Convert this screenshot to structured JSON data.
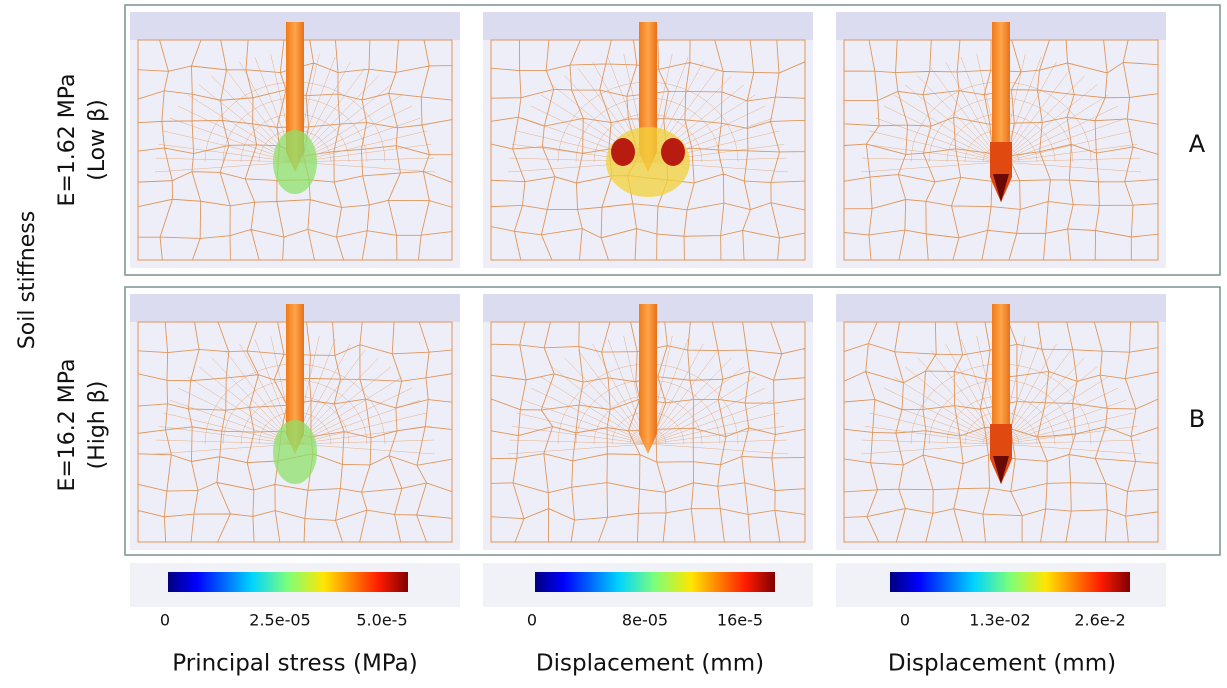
{
  "side_label": "Soil stiffness",
  "rows": [
    {
      "line1": "E=1.62 MPa",
      "line2": "(Low β)",
      "tag": "A"
    },
    {
      "line1": "E=16.2 MPa",
      "line2": "(High β)",
      "tag": "B"
    }
  ],
  "colorbars": [
    {
      "title": "Principal stress (MPa)",
      "ticks": [
        "0",
        "2.5e-05",
        "5.0e-5"
      ]
    },
    {
      "title": "Displacement (mm)",
      "ticks": [
        "0",
        "8e-05",
        "16e-5"
      ]
    },
    {
      "title": "Displacement (mm)",
      "ticks": [
        "0",
        "1.3e-02",
        "2.6e-2"
      ]
    }
  ]
}
